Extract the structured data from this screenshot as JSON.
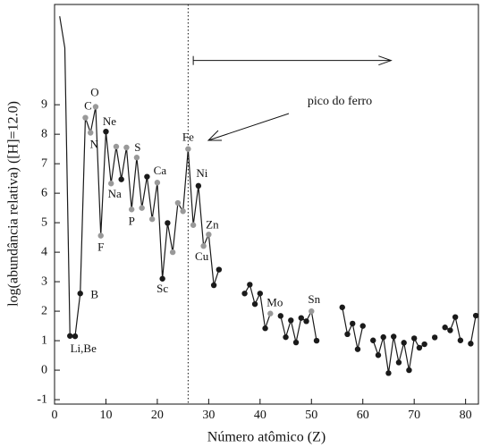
{
  "chart_data": {
    "type": "line",
    "x_label": "Número atômico (Z)",
    "y_label": "log(abundância relativa) ([H]=12.0)",
    "x": [
      1,
      2,
      3,
      4,
      5,
      6,
      7,
      8,
      9,
      10,
      11,
      12,
      13,
      14,
      15,
      16,
      17,
      18,
      19,
      20,
      21,
      22,
      23,
      24,
      25,
      26,
      27,
      28,
      29,
      30,
      31,
      32,
      33,
      34,
      35,
      36,
      37,
      38,
      39,
      40,
      41,
      42,
      43,
      44,
      45,
      46,
      47,
      48,
      49,
      50,
      51,
      52,
      53,
      54,
      55,
      56,
      57,
      58,
      59,
      60,
      61,
      62,
      63,
      64,
      65,
      66,
      67,
      68,
      69,
      70,
      71,
      72,
      73,
      74,
      75,
      76,
      77,
      78,
      79,
      80,
      81,
      82
    ],
    "values": [
      12.0,
      10.93,
      1.16,
      1.15,
      2.6,
      8.56,
      8.05,
      8.93,
      4.56,
      8.09,
      6.33,
      7.58,
      6.47,
      7.55,
      5.45,
      7.21,
      5.5,
      6.56,
      5.12,
      6.36,
      3.1,
      4.99,
      4.0,
      5.67,
      5.39,
      7.5,
      4.92,
      6.25,
      4.21,
      4.6,
      2.88,
      3.41,
      null,
      null,
      null,
      null,
      2.6,
      2.9,
      2.24,
      2.6,
      1.42,
      1.92,
      null,
      1.84,
      1.12,
      1.69,
      0.94,
      1.77,
      1.66,
      2.0,
      1.0,
      null,
      null,
      null,
      null,
      2.13,
      1.22,
      1.58,
      0.71,
      1.5,
      null,
      1.01,
      0.51,
      1.12,
      -0.1,
      1.14,
      0.26,
      0.93,
      0.0,
      1.08,
      0.76,
      0.88,
      null,
      1.11,
      null,
      1.45,
      1.35,
      1.8,
      1.01,
      null,
      0.9,
      1.85
    ],
    "point_colors": [
      null,
      null,
      "#1a1a1a",
      "#1a1a1a",
      "#1a1a1a",
      "#999999",
      "#999999",
      "#999999",
      "#999999",
      "#1a1a1a",
      "#999999",
      "#999999",
      "#1a1a1a",
      "#999999",
      "#999999",
      "#999999",
      "#999999",
      "#1a1a1a",
      "#999999",
      "#999999",
      "#1a1a1a",
      "#1a1a1a",
      "#999999",
      "#999999",
      "#999999",
      "#999999",
      "#999999",
      "#1a1a1a",
      "#999999",
      "#999999",
      "#1a1a1a",
      "#1a1a1a",
      null,
      null,
      null,
      null,
      "#1a1a1a",
      "#1a1a1a",
      "#1a1a1a",
      "#1a1a1a",
      "#1a1a1a",
      "#999999",
      null,
      "#1a1a1a",
      "#1a1a1a",
      "#1a1a1a",
      "#1a1a1a",
      "#1a1a1a",
      "#1a1a1a",
      "#999999",
      "#1a1a1a",
      null,
      null,
      null,
      null,
      "#1a1a1a",
      "#1a1a1a",
      "#1a1a1a",
      "#1a1a1a",
      "#1a1a1a",
      null,
      "#1a1a1a",
      "#1a1a1a",
      "#1a1a1a",
      "#1a1a1a",
      "#1a1a1a",
      "#1a1a1a",
      "#1a1a1a",
      "#1a1a1a",
      "#1a1a1a",
      "#1a1a1a",
      "#1a1a1a",
      null,
      "#1a1a1a",
      null,
      "#1a1a1a",
      "#1a1a1a",
      "#1a1a1a",
      "#1a1a1a",
      null,
      "#1a1a1a",
      "#1a1a1a"
    ],
    "point_labels": [
      null,
      null,
      "Li,Be",
      null,
      "B",
      "C",
      "N",
      "O",
      "F",
      "Ne",
      "Na",
      null,
      null,
      null,
      "P",
      "S",
      null,
      null,
      null,
      "Ca",
      "Sc",
      null,
      null,
      null,
      null,
      "Fe",
      null,
      "Ni",
      "Cu",
      "Zn",
      null,
      null,
      null,
      null,
      null,
      null,
      null,
      null,
      null,
      null,
      null,
      "Mo",
      null,
      null,
      null,
      null,
      null,
      null,
      null,
      "Sn",
      null,
      null,
      null,
      null,
      null,
      null,
      null,
      null,
      null,
      null,
      null,
      null,
      null,
      null,
      null,
      null,
      null,
      null,
      null,
      null,
      null,
      null,
      null,
      null,
      null,
      null,
      null,
      null,
      null,
      null,
      null,
      null
    ],
    "line_color": "#1a1a1a",
    "xlim": [
      0,
      82.5
    ],
    "ylim": [
      -1.15,
      12.4
    ],
    "xticks": [
      0,
      10,
      20,
      30,
      40,
      50,
      60,
      70,
      80
    ],
    "yticks": [
      -1,
      0,
      1,
      2,
      3,
      4,
      5,
      6,
      7,
      8,
      9
    ],
    "reference_line_x": 26,
    "range_arrow": {
      "x": [
        27,
        65.5
      ],
      "y": 10.5
    },
    "annotation": "pico do ferro"
  }
}
